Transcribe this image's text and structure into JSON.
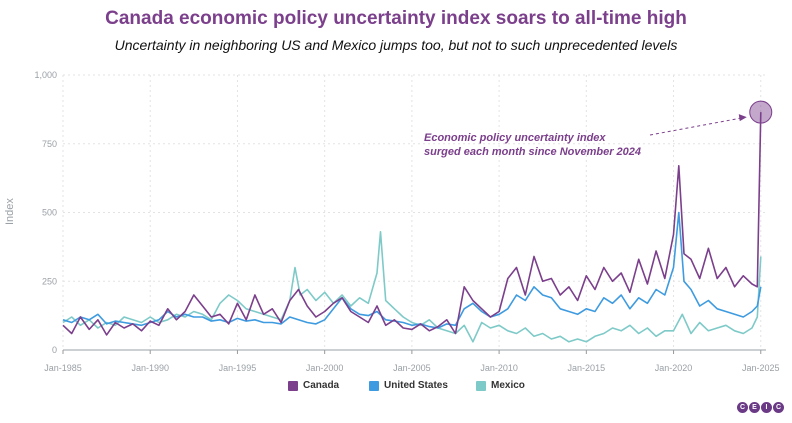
{
  "chart_data": {
    "type": "line",
    "title": "Canada economic policy uncertainty index soars to all-time high",
    "subtitle": "Uncertainty in neighboring US and Mexico jumps too, but not to such unprecedented levels",
    "ylabel": "Index",
    "ylim": [
      0,
      1000
    ],
    "yticks": [
      "0",
      "250",
      "500",
      "750",
      "1,000"
    ],
    "ytick_values": [
      0,
      250,
      500,
      750,
      1000
    ],
    "xlim": [
      1985.0,
      2025.3
    ],
    "xticks": [
      "Jan-1985",
      "Jan-1990",
      "Jan-1995",
      "Jan-2000",
      "Jan-2005",
      "Jan-2010",
      "Jan-2015",
      "Jan-2020",
      "Jan-2025"
    ],
    "xtick_values": [
      1985,
      1990,
      1995,
      2000,
      2005,
      2010,
      2015,
      2020,
      2025
    ],
    "annotation": [
      "Economic policy uncertainty index",
      "surged each month since November 2024"
    ],
    "highlight": {
      "x": 2025.0,
      "y": 865
    },
    "series": [
      {
        "name": "Canada",
        "color": "#7b3f8c",
        "x": [
          1985.0,
          1985.5,
          1986.0,
          1986.5,
          1987.0,
          1987.5,
          1988.0,
          1988.5,
          1989.0,
          1989.5,
          1990.0,
          1990.5,
          1991.0,
          1991.5,
          1992.0,
          1992.5,
          1993.0,
          1993.5,
          1994.0,
          1994.5,
          1995.0,
          1995.5,
          1996.0,
          1996.5,
          1997.0,
          1997.5,
          1998.0,
          1998.5,
          1999.0,
          1999.5,
          2000.0,
          2000.5,
          2001.0,
          2001.5,
          2002.0,
          2002.5,
          2003.0,
          2003.5,
          2004.0,
          2004.5,
          2005.0,
          2005.5,
          2006.0,
          2006.5,
          2007.0,
          2007.5,
          2008.0,
          2008.5,
          2009.0,
          2009.5,
          2010.0,
          2010.5,
          2011.0,
          2011.5,
          2012.0,
          2012.5,
          2013.0,
          2013.5,
          2014.0,
          2014.5,
          2015.0,
          2015.5,
          2016.0,
          2016.5,
          2017.0,
          2017.5,
          2018.0,
          2018.5,
          2019.0,
          2019.5,
          2020.0,
          2020.3,
          2020.6,
          2021.0,
          2021.5,
          2022.0,
          2022.5,
          2023.0,
          2023.5,
          2024.0,
          2024.5,
          2024.8,
          2025.0
        ],
        "values": [
          90,
          60,
          120,
          75,
          110,
          55,
          100,
          80,
          95,
          70,
          105,
          90,
          150,
          110,
          140,
          200,
          160,
          120,
          130,
          95,
          170,
          110,
          200,
          130,
          150,
          100,
          180,
          220,
          160,
          120,
          140,
          170,
          190,
          140,
          120,
          100,
          160,
          90,
          110,
          80,
          75,
          95,
          70,
          85,
          110,
          60,
          230,
          180,
          150,
          120,
          140,
          260,
          300,
          200,
          340,
          250,
          260,
          200,
          230,
          180,
          270,
          220,
          300,
          250,
          280,
          210,
          330,
          240,
          360,
          260,
          420,
          670,
          350,
          330,
          260,
          370,
          260,
          300,
          230,
          270,
          240,
          230,
          865
        ]
      },
      {
        "name": "United States",
        "color": "#3e9be0",
        "x": [
          1985.0,
          1985.5,
          1986.0,
          1986.5,
          1987.0,
          1987.5,
          1988.0,
          1988.5,
          1989.0,
          1989.5,
          1990.0,
          1990.5,
          1991.0,
          1991.5,
          1992.0,
          1992.5,
          1993.0,
          1993.5,
          1994.0,
          1994.5,
          1995.0,
          1995.5,
          1996.0,
          1996.5,
          1997.0,
          1997.5,
          1998.0,
          1998.5,
          1999.0,
          1999.5,
          2000.0,
          2000.5,
          2001.0,
          2001.5,
          2002.0,
          2002.5,
          2003.0,
          2003.5,
          2004.0,
          2004.5,
          2005.0,
          2005.5,
          2006.0,
          2006.5,
          2007.0,
          2007.5,
          2008.0,
          2008.5,
          2009.0,
          2009.5,
          2010.0,
          2010.5,
          2011.0,
          2011.5,
          2012.0,
          2012.5,
          2013.0,
          2013.5,
          2014.0,
          2014.5,
          2015.0,
          2015.5,
          2016.0,
          2016.5,
          2017.0,
          2017.5,
          2018.0,
          2018.5,
          2019.0,
          2019.5,
          2020.0,
          2020.3,
          2020.6,
          2021.0,
          2021.5,
          2022.0,
          2022.5,
          2023.0,
          2023.5,
          2024.0,
          2024.5,
          2024.8,
          2025.0
        ],
        "values": [
          110,
          100,
          120,
          110,
          130,
          95,
          105,
          100,
          95,
          90,
          100,
          110,
          140,
          120,
          130,
          120,
          120,
          105,
          110,
          100,
          115,
          105,
          110,
          100,
          100,
          95,
          120,
          110,
          100,
          95,
          110,
          150,
          190,
          150,
          130,
          125,
          140,
          110,
          105,
          100,
          90,
          95,
          85,
          80,
          95,
          90,
          150,
          170,
          140,
          120,
          130,
          150,
          200,
          180,
          230,
          200,
          190,
          150,
          140,
          130,
          150,
          140,
          190,
          170,
          200,
          150,
          190,
          170,
          220,
          200,
          300,
          500,
          250,
          220,
          160,
          180,
          150,
          140,
          130,
          120,
          140,
          160,
          230
        ]
      },
      {
        "name": "Mexico",
        "color": "#7ecac8",
        "x": [
          1985.0,
          1985.5,
          1986.0,
          1986.5,
          1987.0,
          1987.5,
          1988.0,
          1988.5,
          1989.0,
          1989.5,
          1990.0,
          1990.5,
          1991.0,
          1991.5,
          1992.0,
          1992.5,
          1993.0,
          1993.5,
          1994.0,
          1994.5,
          1995.0,
          1995.5,
          1996.0,
          1996.5,
          1997.0,
          1997.5,
          1998.0,
          1998.3,
          1998.6,
          1999.0,
          1999.5,
          2000.0,
          2000.5,
          2001.0,
          2001.5,
          2002.0,
          2002.5,
          2003.0,
          2003.2,
          2003.5,
          2004.0,
          2004.5,
          2005.0,
          2005.5,
          2006.0,
          2006.5,
          2007.0,
          2007.5,
          2008.0,
          2008.5,
          2009.0,
          2009.5,
          2010.0,
          2010.5,
          2011.0,
          2011.5,
          2012.0,
          2012.5,
          2013.0,
          2013.5,
          2014.0,
          2014.5,
          2015.0,
          2015.5,
          2016.0,
          2016.5,
          2017.0,
          2017.5,
          2018.0,
          2018.5,
          2019.0,
          2019.5,
          2020.0,
          2020.5,
          2021.0,
          2021.5,
          2022.0,
          2022.5,
          2023.0,
          2023.5,
          2024.0,
          2024.5,
          2024.8,
          2025.0
        ],
        "values": [
          100,
          120,
          90,
          110,
          80,
          100,
          90,
          120,
          110,
          100,
          120,
          100,
          110,
          130,
          120,
          140,
          130,
          110,
          170,
          200,
          180,
          150,
          140,
          130,
          120,
          110,
          180,
          300,
          200,
          220,
          180,
          210,
          170,
          200,
          160,
          190,
          170,
          280,
          430,
          180,
          150,
          120,
          100,
          90,
          110,
          80,
          70,
          60,
          90,
          30,
          100,
          80,
          90,
          70,
          60,
          80,
          50,
          60,
          40,
          50,
          30,
          40,
          30,
          50,
          60,
          80,
          70,
          90,
          60,
          80,
          50,
          70,
          70,
          130,
          60,
          100,
          70,
          80,
          90,
          70,
          60,
          80,
          120,
          340
        ]
      }
    ]
  },
  "footer": {
    "logo": [
      "C",
      "E",
      "I",
      "C"
    ]
  }
}
